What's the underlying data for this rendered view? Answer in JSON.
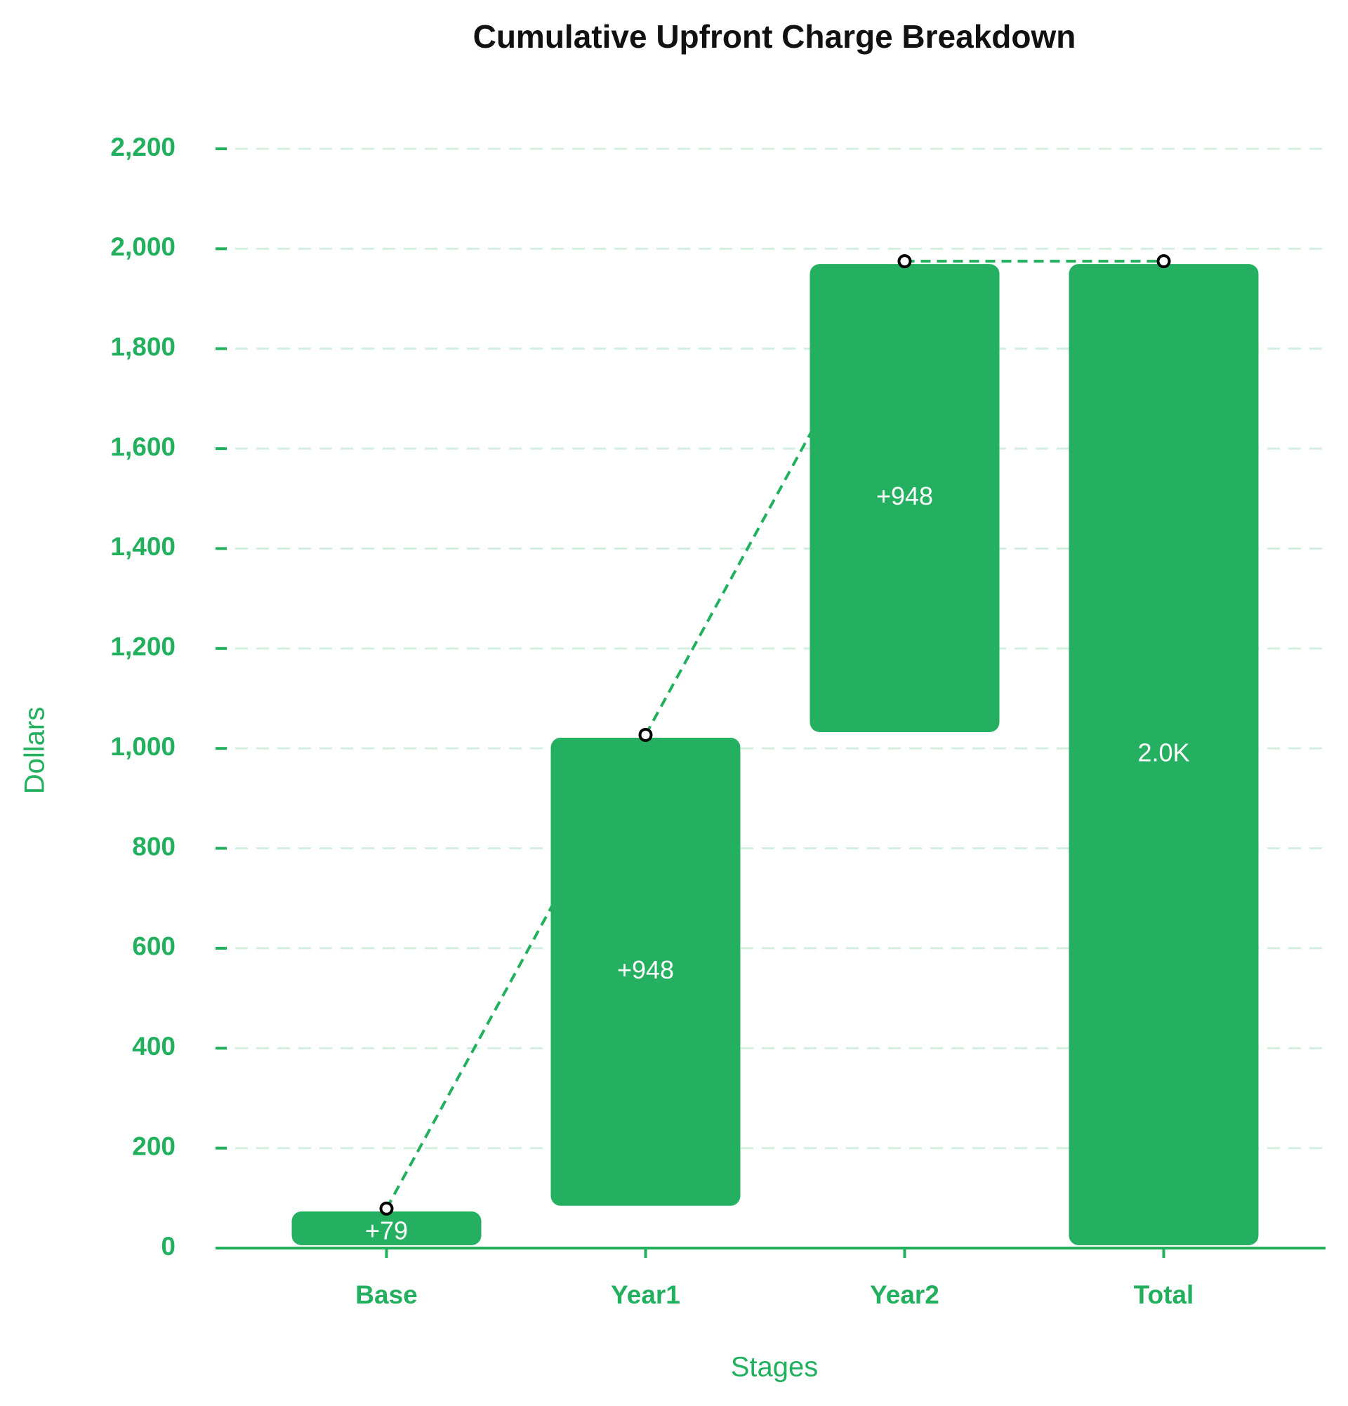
{
  "chart_data": {
    "type": "waterfall",
    "title": "Cumulative Upfront Charge Breakdown",
    "x_label": "Stages",
    "y_label": "Dollars",
    "categories": [
      "Base",
      "Year1",
      "Year2",
      "Total"
    ],
    "values": [
      79,
      948,
      948,
      1975
    ],
    "value_labels": [
      "+79",
      "+948",
      "+948",
      "2.0K"
    ],
    "color": "#24b060",
    "ylim": [
      0,
      2200
    ],
    "yticks": [
      0,
      200,
      400,
      600,
      800,
      {
        "value": 1000,
        "label": "1,000"
      },
      {
        "value": 1200,
        "label": "1,200"
      },
      {
        "value": 1400,
        "label": "1,400"
      },
      {
        "value": 1600,
        "label": "1,600"
      },
      {
        "value": 1800,
        "label": "1,800"
      },
      {
        "value": 2000,
        "label": "2,000"
      },
      {
        "value": 2200,
        "label": "2,200"
      }
    ],
    "grid": true
  }
}
